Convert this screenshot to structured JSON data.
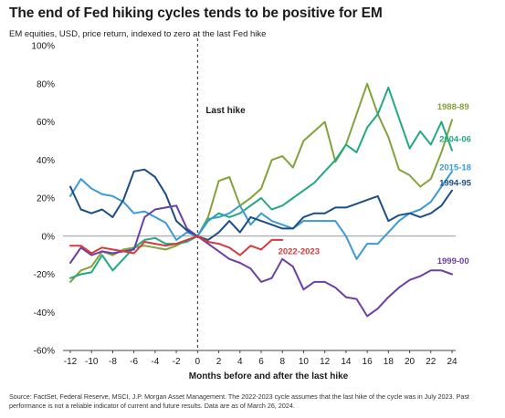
{
  "title": "The end of Fed hiking cycles tends to be positive for EM",
  "subtitle": "EM equities, USD, price return, indexed to zero at the last Fed hike",
  "footnote": "Source: FactSet, Federal Reserve, MSCI, J.P. Morgan Asset Management. The 2022-2023 cycle assumes that the last hike of the cycle was in July 2023. Past performance is not a reliable indicator of current and future results. Data are as of March 26, 2024.",
  "chart_data": {
    "type": "line",
    "xlabel": "Months before and after the last hike",
    "ylabel": "",
    "xlim": [
      -12,
      24
    ],
    "ylim": [
      -60,
      100
    ],
    "x_ticks": [
      -12,
      -10,
      -8,
      -6,
      -4,
      -2,
      0,
      2,
      4,
      6,
      8,
      10,
      12,
      14,
      16,
      18,
      20,
      22,
      24
    ],
    "y_ticks": [
      -60,
      -40,
      -20,
      0,
      20,
      40,
      60,
      80,
      100
    ],
    "y_tick_labels": [
      "-60%",
      "-40%",
      "-20%",
      "0%",
      "20%",
      "40%",
      "60%",
      "80%",
      "100%"
    ],
    "annotation": {
      "text": "Last hike",
      "x": 0
    },
    "series": [
      {
        "name": "1988-89",
        "color": "#82a23a",
        "label_x": 22.6,
        "label_y": 68,
        "x": [
          -12,
          -11,
          -10,
          -9,
          -8,
          -7,
          -6,
          -5,
          -4,
          -3,
          -2,
          -1,
          0,
          1,
          2,
          3,
          4,
          5,
          6,
          7,
          8,
          9,
          10,
          11,
          12,
          13,
          14,
          15,
          16,
          17,
          18,
          19,
          20,
          21,
          22,
          23,
          24
        ],
        "y": [
          -24,
          -18,
          -16,
          -8,
          -10,
          -7,
          -6,
          -5,
          -6,
          -7,
          -5,
          -2,
          0,
          10,
          29,
          31,
          16,
          20,
          25,
          40,
          42,
          36,
          50,
          55,
          60,
          39,
          48,
          64,
          80,
          64,
          52,
          35,
          32,
          26,
          30,
          44,
          61
        ]
      },
      {
        "name": "2004-06",
        "color": "#24a882",
        "label_x": 22.8,
        "label_y": 51,
        "x": [
          -12,
          -11,
          -10,
          -9,
          -8,
          -7,
          -6,
          -5,
          -4,
          -3,
          -2,
          -1,
          0,
          1,
          2,
          3,
          4,
          5,
          6,
          7,
          8,
          9,
          10,
          11,
          12,
          13,
          14,
          15,
          16,
          17,
          18,
          19,
          20,
          21,
          22,
          23,
          24
        ],
        "y": [
          -22,
          -20,
          -19,
          -10,
          -18,
          -12,
          -6,
          -2,
          -1,
          -4,
          -4,
          -3,
          0,
          8,
          12,
          10,
          12,
          16,
          20,
          14,
          16,
          20,
          24,
          28,
          34,
          40,
          48,
          44,
          57,
          64,
          78,
          62,
          46,
          55,
          48,
          60,
          45
        ]
      },
      {
        "name": "2015-18",
        "color": "#3b9ad6",
        "label_x": 22.8,
        "label_y": 36,
        "x": [
          -12,
          -11,
          -10,
          -9,
          -8,
          -7,
          -6,
          -5,
          -4,
          -3,
          -2,
          -1,
          0,
          1,
          2,
          3,
          4,
          5,
          6,
          7,
          8,
          9,
          10,
          11,
          12,
          13,
          14,
          15,
          16,
          17,
          18,
          19,
          20,
          21,
          22,
          23,
          24
        ],
        "y": [
          21,
          30,
          25,
          22,
          21,
          18,
          12,
          13,
          10,
          7,
          -2,
          2,
          0,
          9,
          10,
          12,
          16,
          6,
          12,
          8,
          6,
          4,
          8,
          8,
          8,
          8,
          0,
          -12,
          -4,
          -4,
          2,
          8,
          12,
          14,
          18,
          26,
          34
        ]
      },
      {
        "name": "1994-95",
        "color": "#1b4e86",
        "label_x": 22.8,
        "label_y": 28,
        "x": [
          -12,
          -11,
          -10,
          -9,
          -8,
          -7,
          -6,
          -5,
          -4,
          -3,
          -2,
          -1,
          0,
          1,
          2,
          3,
          4,
          5,
          6,
          7,
          8,
          9,
          10,
          11,
          12,
          13,
          14,
          15,
          16,
          17,
          18,
          19,
          20,
          21,
          22,
          23,
          24
        ],
        "y": [
          26,
          14,
          12,
          14,
          10,
          19,
          34,
          35,
          31,
          22,
          8,
          3,
          0,
          -2,
          2,
          8,
          2,
          10,
          8,
          6,
          4,
          4,
          10,
          12,
          12,
          15,
          15,
          17,
          19,
          21,
          8,
          11,
          12,
          10,
          12,
          16,
          24
        ]
      },
      {
        "name": "1999-00",
        "color": "#6a3fa6",
        "label_x": 22.6,
        "label_y": -13,
        "x": [
          -12,
          -11,
          -10,
          -9,
          -8,
          -7,
          -6,
          -5,
          -4,
          -3,
          -2,
          -1,
          0,
          1,
          2,
          3,
          4,
          5,
          6,
          7,
          8,
          9,
          10,
          11,
          12,
          13,
          14,
          15,
          16,
          17,
          18,
          19,
          20,
          21,
          22,
          23,
          24
        ],
        "y": [
          -14,
          -6,
          -10,
          -8,
          -9,
          -8,
          -7,
          10,
          14,
          15,
          16,
          4,
          0,
          -4,
          -8,
          -12,
          -14,
          -17,
          -24,
          -22,
          -12,
          -16,
          -28,
          -24,
          -24,
          -27,
          -32,
          -33,
          -42,
          -38,
          -32,
          -27,
          -23,
          -21,
          -18,
          -18,
          -20
        ]
      },
      {
        "name": "2022-2023",
        "color": "#d63a3a",
        "label_x": 7.6,
        "label_y": -8,
        "x": [
          -12,
          -11,
          -10,
          -9,
          -8,
          -7,
          -6,
          -5,
          -4,
          -3,
          -2,
          -1,
          0,
          1,
          2,
          3,
          4,
          5,
          6,
          7,
          8
        ],
        "y": [
          -5,
          -5,
          -9,
          -6,
          -7,
          -8,
          -9,
          -3,
          -4,
          -5,
          -4,
          -2,
          0,
          -3,
          -4,
          -6,
          -10,
          -5,
          -7,
          -2,
          -2
        ]
      }
    ]
  }
}
